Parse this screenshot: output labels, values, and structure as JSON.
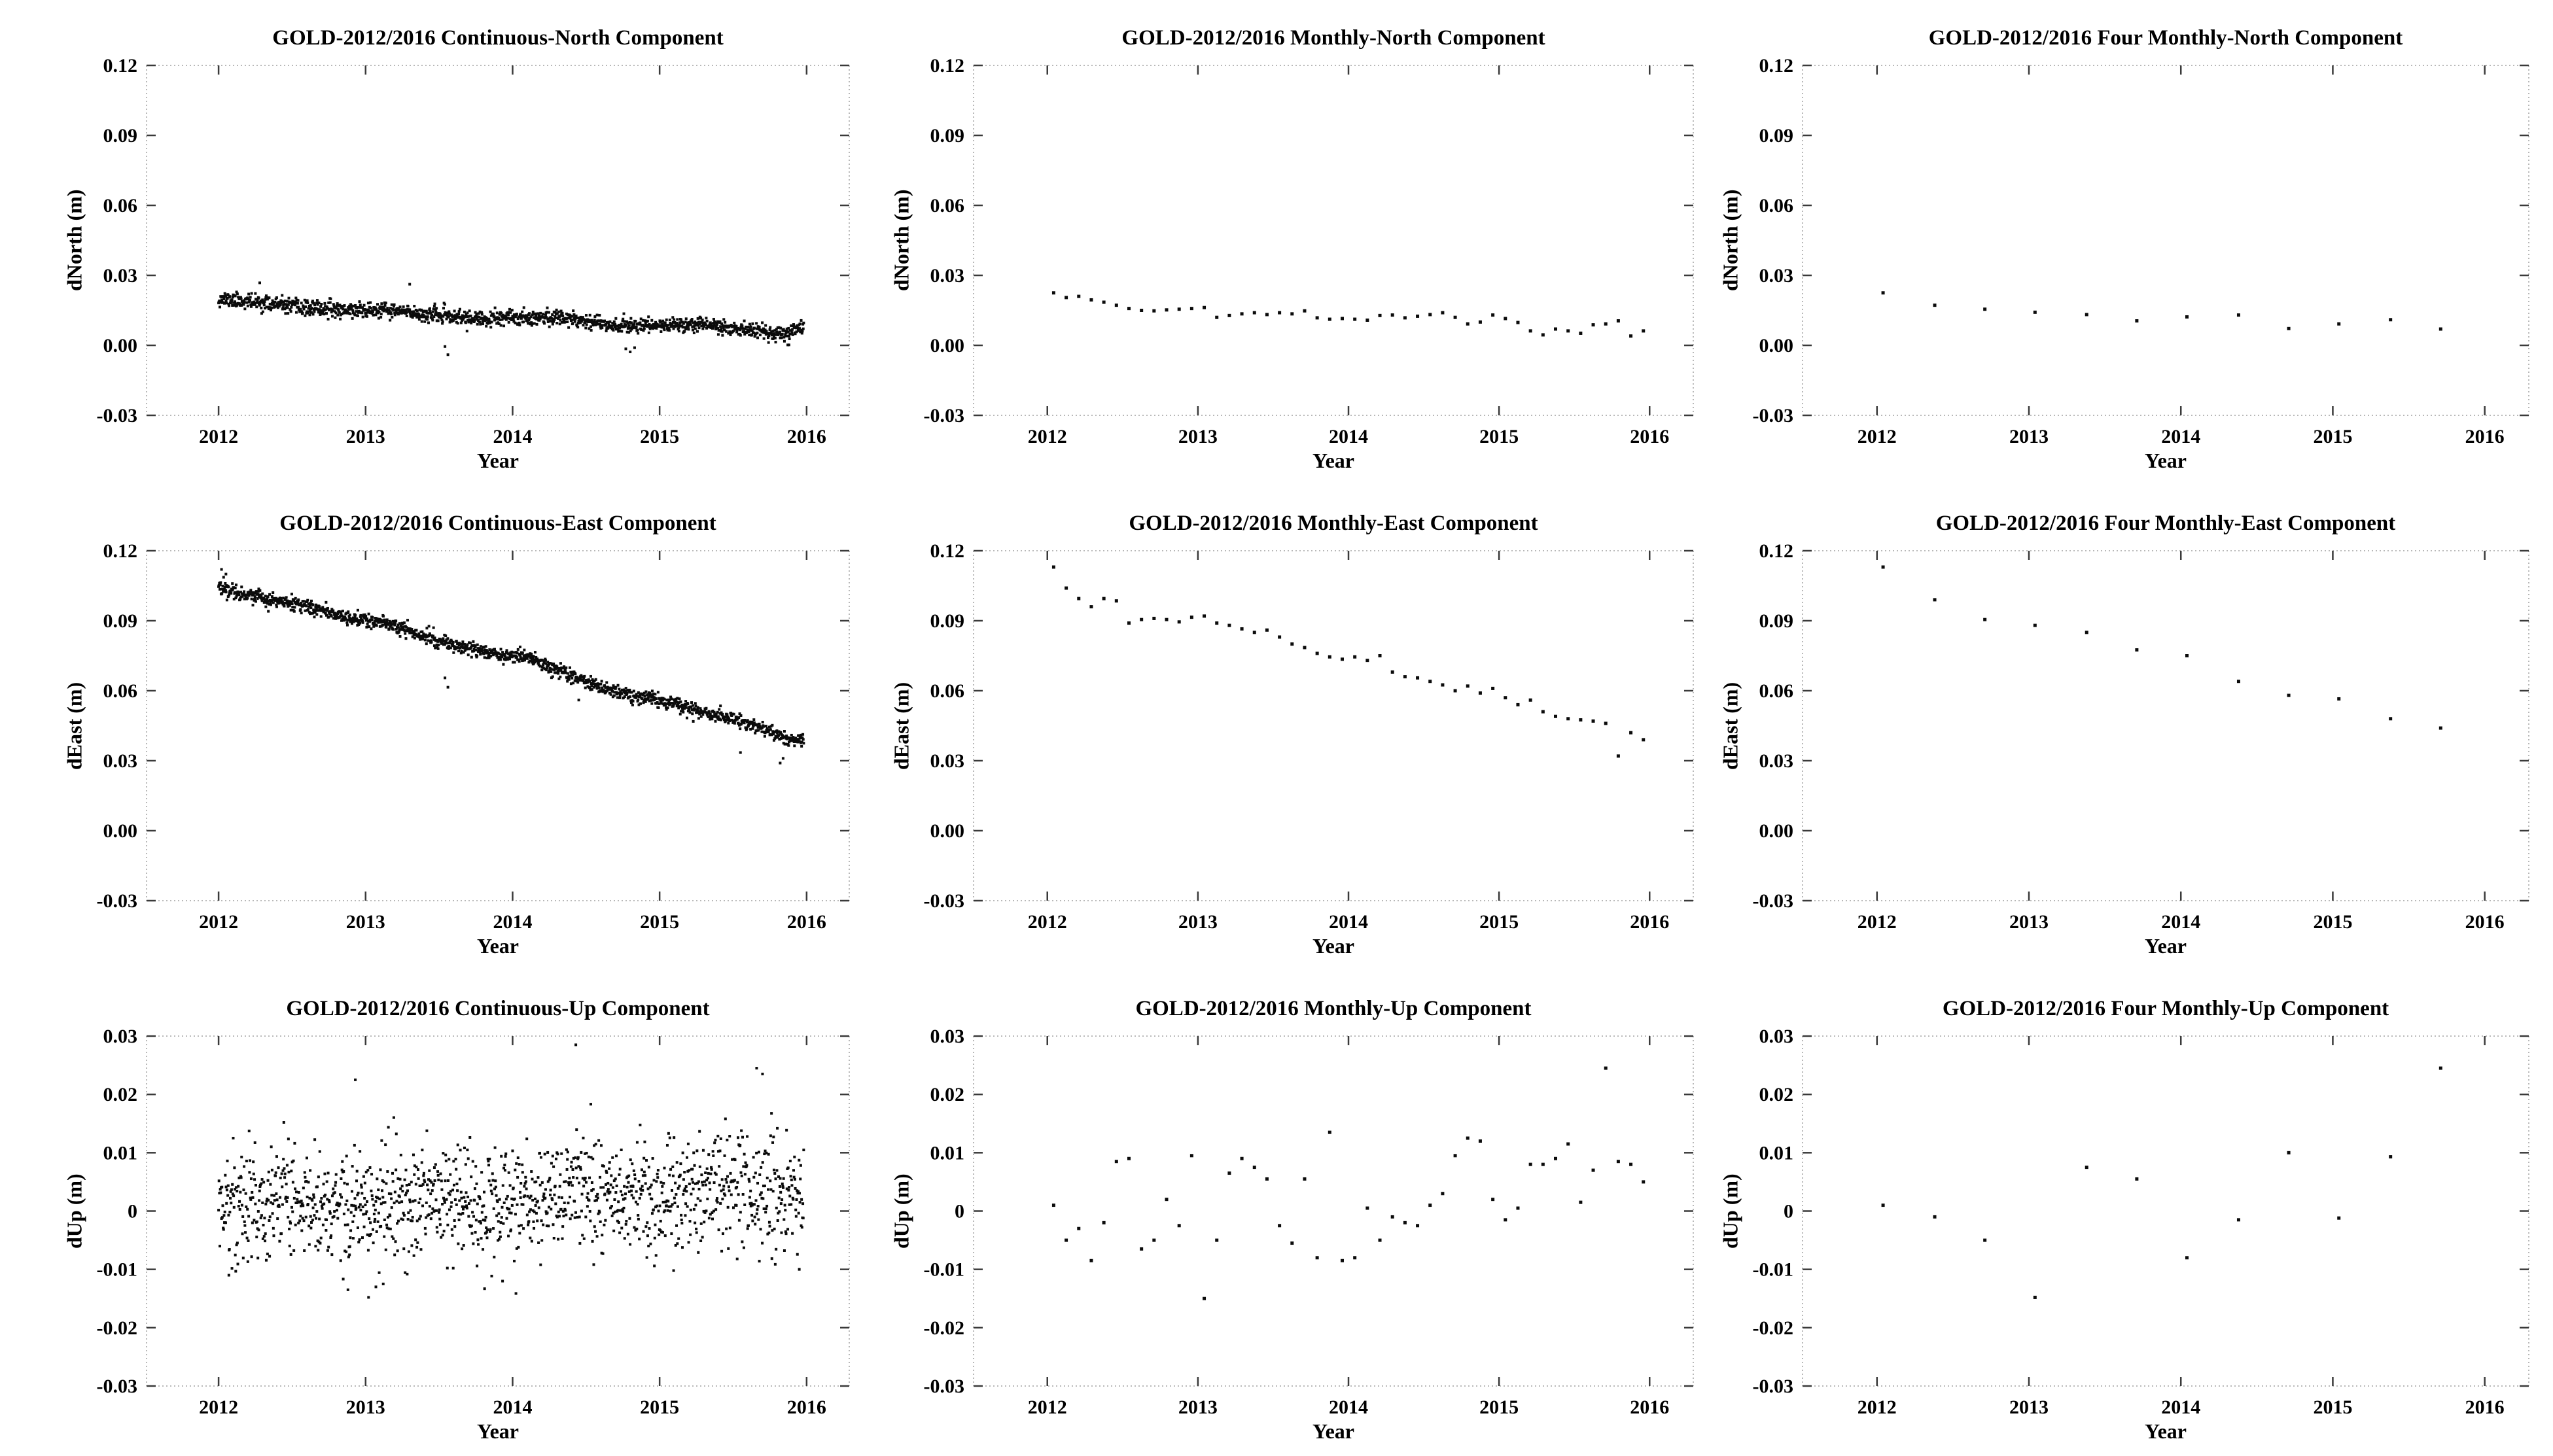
{
  "figure": {
    "station": "GOLD",
    "period_label": "2012/2016",
    "background": "#ffffff",
    "text_color": "#000000",
    "marker_color": "#0b0b0b",
    "spine_color": "#b8b8b8",
    "tick_color": "#3a3a3a"
  },
  "chart_data": [
    {
      "id": "continuous-north",
      "type": "scatter",
      "title": "GOLD-2012/2016 Continuous-North Component",
      "xlabel": "Year",
      "ylabel": "dNorth (m)",
      "xlim": [
        2011.51,
        2016.29
      ],
      "ylim": [
        -0.03,
        0.12
      ],
      "xticks": [
        2012,
        2013,
        2014,
        2015,
        2016
      ],
      "xtick_labels": [
        "2012",
        "2013",
        "2014",
        "2015",
        "2016"
      ],
      "yticks": [
        -0.03,
        0.0,
        0.03,
        0.06,
        0.09,
        0.12
      ],
      "ytick_labels": [
        "-0.03",
        "0.00",
        "0.03",
        "0.06",
        "0.09",
        "0.12"
      ],
      "grid": false,
      "legend": null,
      "marker": "square",
      "marker_size": 4,
      "series": {
        "generated": true,
        "seed": 11,
        "n": 1400,
        "x_start": 2012.0,
        "x_end": 2015.98,
        "trend_x": [
          2012.0,
          2012.3,
          2012.6,
          2012.9,
          2013.2,
          2013.5,
          2013.8,
          2014.1,
          2014.4,
          2014.7,
          2015.0,
          2015.3,
          2015.6,
          2015.85,
          2015.98
        ],
        "trend_y": [
          0.02,
          0.0182,
          0.0158,
          0.0152,
          0.0147,
          0.0128,
          0.011,
          0.0122,
          0.0118,
          0.0085,
          0.0086,
          0.0092,
          0.0064,
          0.0045,
          0.0085
        ],
        "noise_sd": 0.0016,
        "outliers_x": [
          2012.28,
          2013.3,
          2013.54,
          2013.56,
          2014.77,
          2014.8,
          2014.83,
          2015.88
        ],
        "outliers_y": [
          0.0268,
          0.0262,
          -0.0005,
          -0.004,
          -0.0015,
          -0.0028,
          -0.001,
          0.0002
        ]
      }
    },
    {
      "id": "monthly-north",
      "type": "scatter",
      "title": "GOLD-2012/2016 Monthly-North Component",
      "xlabel": "Year",
      "ylabel": "dNorth (m)",
      "xlim": [
        2011.51,
        2016.29
      ],
      "ylim": [
        -0.03,
        0.12
      ],
      "xticks": [
        2012,
        2013,
        2014,
        2015,
        2016
      ],
      "xtick_labels": [
        "2012",
        "2013",
        "2014",
        "2015",
        "2016"
      ],
      "yticks": [
        -0.03,
        0.0,
        0.03,
        0.06,
        0.09,
        0.12
      ],
      "ytick_labels": [
        "-0.03",
        "0.00",
        "0.03",
        "0.06",
        "0.09",
        "0.12"
      ],
      "grid": false,
      "legend": null,
      "marker": "square",
      "marker_size": 5,
      "series": {
        "x_start": 2012.042,
        "x_step": 0.083333,
        "y": [
          0.0225,
          0.0205,
          0.021,
          0.0195,
          0.0185,
          0.0172,
          0.0158,
          0.015,
          0.0148,
          0.0152,
          0.0155,
          0.0158,
          0.0162,
          0.012,
          0.0128,
          0.0135,
          0.014,
          0.0132,
          0.014,
          0.0135,
          0.0148,
          0.0118,
          0.0112,
          0.0115,
          0.0112,
          0.0108,
          0.0128,
          0.013,
          0.0118,
          0.0125,
          0.0132,
          0.014,
          0.012,
          0.0092,
          0.01,
          0.013,
          0.0115,
          0.0098,
          0.0062,
          0.0045,
          0.007,
          0.0062,
          0.0052,
          0.0088,
          0.0092,
          0.0105,
          0.004,
          0.0062
        ]
      }
    },
    {
      "id": "four-monthly-north",
      "type": "scatter",
      "title": "GOLD-2012/2016 Four Monthly-North Component",
      "xlabel": "Year",
      "ylabel": "dNorth (m)",
      "xlim": [
        2011.51,
        2016.29
      ],
      "ylim": [
        -0.03,
        0.12
      ],
      "xticks": [
        2012,
        2013,
        2014,
        2015,
        2016
      ],
      "xtick_labels": [
        "2012",
        "2013",
        "2014",
        "2015",
        "2016"
      ],
      "yticks": [
        -0.03,
        0.0,
        0.03,
        0.06,
        0.09,
        0.12
      ],
      "ytick_labels": [
        "-0.03",
        "0.00",
        "0.03",
        "0.06",
        "0.09",
        "0.12"
      ],
      "grid": false,
      "legend": null,
      "marker": "square",
      "marker_size": 5,
      "series": {
        "x": [
          2012.04,
          2012.38,
          2012.71,
          2013.04,
          2013.38,
          2013.71,
          2014.04,
          2014.38,
          2014.71,
          2015.04,
          2015.38,
          2015.71
        ],
        "y": [
          0.0225,
          0.0172,
          0.0155,
          0.0142,
          0.0132,
          0.0105,
          0.0122,
          0.013,
          0.0072,
          0.0092,
          0.011,
          0.007
        ]
      }
    },
    {
      "id": "continuous-east",
      "type": "scatter",
      "title": "GOLD-2012/2016 Continuous-East Component",
      "xlabel": "Year",
      "ylabel": "dEast (m)",
      "xlim": [
        2011.51,
        2016.29
      ],
      "ylim": [
        -0.03,
        0.12
      ],
      "xticks": [
        2012,
        2013,
        2014,
        2015,
        2016
      ],
      "xtick_labels": [
        "2012",
        "2013",
        "2014",
        "2015",
        "2016"
      ],
      "yticks": [
        -0.03,
        0.0,
        0.03,
        0.06,
        0.09,
        0.12
      ],
      "ytick_labels": [
        "-0.03",
        "0.00",
        "0.03",
        "0.06",
        "0.09",
        "0.12"
      ],
      "grid": false,
      "legend": null,
      "marker": "square",
      "marker_size": 4,
      "series": {
        "generated": true,
        "seed": 22,
        "n": 1400,
        "x_start": 2012.0,
        "x_end": 2015.98,
        "trend_x": [
          2012.0,
          2012.3,
          2012.6,
          2012.9,
          2013.2,
          2013.5,
          2013.8,
          2014.1,
          2014.4,
          2014.7,
          2015.0,
          2015.3,
          2015.6,
          2015.85,
          2015.98
        ],
        "trend_y": [
          0.1045,
          0.0995,
          0.096,
          0.0912,
          0.0878,
          0.0812,
          0.0768,
          0.0742,
          0.0662,
          0.0592,
          0.056,
          0.0508,
          0.0462,
          0.0398,
          0.0385
        ],
        "noise_sd": 0.0015,
        "outliers_x": [
          2012.02,
          2012.05,
          2013.54,
          2013.56,
          2014.45,
          2015.55,
          2015.82,
          2015.84
        ],
        "outliers_y": [
          0.112,
          0.11,
          0.0655,
          0.0615,
          0.056,
          0.0335,
          0.029,
          0.031
        ]
      }
    },
    {
      "id": "monthly-east",
      "type": "scatter",
      "title": "GOLD-2012/2016 Monthly-East Component",
      "xlabel": "Year",
      "ylabel": "dEast (m)",
      "xlim": [
        2011.51,
        2016.29
      ],
      "ylim": [
        -0.03,
        0.12
      ],
      "xticks": [
        2012,
        2013,
        2014,
        2015,
        2016
      ],
      "xtick_labels": [
        "2012",
        "2013",
        "2014",
        "2015",
        "2016"
      ],
      "yticks": [
        -0.03,
        0.0,
        0.03,
        0.06,
        0.09,
        0.12
      ],
      "ytick_labels": [
        "-0.03",
        "0.00",
        "0.03",
        "0.06",
        "0.09",
        "0.12"
      ],
      "grid": false,
      "legend": null,
      "marker": "square",
      "marker_size": 5,
      "series": {
        "x_start": 2012.042,
        "x_step": 0.083333,
        "y": [
          0.113,
          0.104,
          0.0995,
          0.096,
          0.0995,
          0.0985,
          0.089,
          0.0905,
          0.091,
          0.0905,
          0.0895,
          0.0915,
          0.092,
          0.089,
          0.088,
          0.0865,
          0.085,
          0.086,
          0.083,
          0.08,
          0.0785,
          0.076,
          0.0745,
          0.0735,
          0.0745,
          0.073,
          0.075,
          0.068,
          0.066,
          0.0655,
          0.064,
          0.0625,
          0.06,
          0.062,
          0.059,
          0.061,
          0.057,
          0.054,
          0.056,
          0.051,
          0.049,
          0.048,
          0.0475,
          0.047,
          0.046,
          0.032,
          0.042,
          0.039
        ]
      }
    },
    {
      "id": "four-monthly-east",
      "type": "scatter",
      "title": "GOLD-2012/2016 Four Monthly-East Component",
      "xlabel": "Year",
      "ylabel": "dEast (m)",
      "xlim": [
        2011.51,
        2016.29
      ],
      "ylim": [
        -0.03,
        0.12
      ],
      "xticks": [
        2012,
        2013,
        2014,
        2015,
        2016
      ],
      "xtick_labels": [
        "2012",
        "2013",
        "2014",
        "2015",
        "2016"
      ],
      "yticks": [
        -0.03,
        0.0,
        0.03,
        0.06,
        0.09,
        0.12
      ],
      "ytick_labels": [
        "-0.03",
        "0.00",
        "0.03",
        "0.06",
        "0.09",
        "0.12"
      ],
      "grid": false,
      "legend": null,
      "marker": "square",
      "marker_size": 5,
      "series": {
        "x": [
          2012.04,
          2012.38,
          2012.71,
          2013.04,
          2013.38,
          2013.71,
          2014.04,
          2014.38,
          2014.71,
          2015.04,
          2015.38,
          2015.71
        ],
        "y": [
          0.113,
          0.099,
          0.0905,
          0.088,
          0.085,
          0.0775,
          0.075,
          0.064,
          0.058,
          0.0565,
          0.048,
          0.044
        ]
      }
    },
    {
      "id": "continuous-up",
      "type": "scatter",
      "title": "GOLD-2012/2016 Continuous-Up Component",
      "xlabel": "Year",
      "ylabel": "dUp (m)",
      "xlim": [
        2011.51,
        2016.29
      ],
      "ylim": [
        -0.03,
        0.03
      ],
      "xticks": [
        2012,
        2013,
        2014,
        2015,
        2016
      ],
      "xtick_labels": [
        "2012",
        "2013",
        "2014",
        "2015",
        "2016"
      ],
      "yticks": [
        -0.03,
        -0.02,
        -0.01,
        0.0,
        0.01,
        0.02,
        0.03
      ],
      "ytick_labels": [
        "-0.03",
        "-0.02",
        "-0.01",
        "0",
        "0.01",
        "0.02",
        "0.03"
      ],
      "grid": false,
      "legend": null,
      "marker": "square",
      "marker_size": 4,
      "series": {
        "generated": true,
        "seed": 33,
        "n": 1400,
        "x_start": 2012.0,
        "x_end": 2015.98,
        "trend_x": [
          2012.0,
          2012.5,
          2013.0,
          2013.5,
          2014.0,
          2014.5,
          2015.0,
          2015.5,
          2015.98
        ],
        "trend_y": [
          0.0005,
          0.002,
          0.0,
          0.002,
          0.001,
          0.003,
          0.0022,
          0.005,
          0.0028
        ],
        "noise_sd": 0.0048,
        "outliers_x": [
          2012.07,
          2012.88,
          2012.93,
          2013.02,
          2013.07,
          2013.12,
          2014.43,
          2015.66,
          2015.7,
          2015.95
        ],
        "outliers_y": [
          -0.011,
          -0.0135,
          0.0225,
          -0.0148,
          -0.013,
          -0.0125,
          0.0285,
          0.0245,
          0.0235,
          -0.01
        ]
      }
    },
    {
      "id": "monthly-up",
      "type": "scatter",
      "title": "GOLD-2012/2016 Monthly-Up Component",
      "xlabel": "Year",
      "ylabel": "dUp (m)",
      "xlim": [
        2011.51,
        2016.29
      ],
      "ylim": [
        -0.03,
        0.03
      ],
      "xticks": [
        2012,
        2013,
        2014,
        2015,
        2016
      ],
      "xtick_labels": [
        "2012",
        "2013",
        "2014",
        "2015",
        "2016"
      ],
      "yticks": [
        -0.03,
        -0.02,
        -0.01,
        0.0,
        0.01,
        0.02,
        0.03
      ],
      "ytick_labels": [
        "-0.03",
        "-0.02",
        "-0.01",
        "0",
        "0.01",
        "0.02",
        "0.03"
      ],
      "grid": false,
      "legend": null,
      "marker": "square",
      "marker_size": 5,
      "series": {
        "x_start": 2012.042,
        "x_step": 0.083333,
        "y": [
          0.001,
          -0.005,
          -0.003,
          -0.0085,
          -0.002,
          0.0085,
          0.009,
          -0.0065,
          -0.005,
          0.002,
          -0.0025,
          0.0095,
          -0.015,
          -0.005,
          0.0065,
          0.009,
          0.0075,
          0.0055,
          -0.0025,
          -0.0055,
          0.0055,
          -0.008,
          0.0135,
          -0.0085,
          -0.008,
          0.0005,
          -0.005,
          -0.001,
          -0.002,
          -0.0025,
          0.001,
          0.003,
          0.0095,
          0.0125,
          0.012,
          0.002,
          -0.0015,
          0.0005,
          0.008,
          0.008,
          0.009,
          0.0115,
          0.0015,
          0.007,
          0.0245,
          0.0085,
          0.008,
          0.005
        ]
      }
    },
    {
      "id": "four-monthly-up",
      "type": "scatter",
      "title": "GOLD-2012/2016 Four Monthly-Up Component",
      "xlabel": "Year",
      "ylabel": "dUp (m)",
      "xlim": [
        2011.51,
        2016.29
      ],
      "ylim": [
        -0.03,
        0.03
      ],
      "xticks": [
        2012,
        2013,
        2014,
        2015,
        2016
      ],
      "xtick_labels": [
        "2012",
        "2013",
        "2014",
        "2015",
        "2016"
      ],
      "yticks": [
        -0.03,
        -0.02,
        -0.01,
        0.0,
        0.01,
        0.02,
        0.03
      ],
      "ytick_labels": [
        "-0.03",
        "-0.02",
        "-0.01",
        "0",
        "0.01",
        "0.02",
        "0.03"
      ],
      "grid": false,
      "legend": null,
      "marker": "square",
      "marker_size": 5,
      "series": {
        "x": [
          2012.04,
          2012.38,
          2012.71,
          2013.04,
          2013.38,
          2013.71,
          2014.04,
          2014.38,
          2014.71,
          2015.04,
          2015.38,
          2015.71
        ],
        "y": [
          0.001,
          -0.001,
          -0.005,
          -0.0148,
          0.0075,
          0.0055,
          -0.008,
          -0.0015,
          0.01,
          -0.0012,
          0.0093,
          0.0245
        ]
      }
    }
  ]
}
